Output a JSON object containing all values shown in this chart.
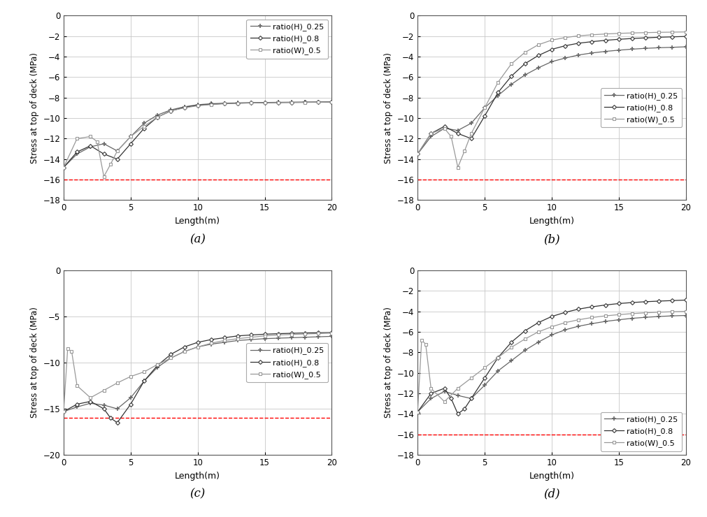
{
  "panels": [
    "(a)",
    "(b)",
    "(c)",
    "(d)"
  ],
  "legend_labels": [
    "ratio(H)_0.25",
    "ratio(H)_0.8",
    "ratio(W)_0.5"
  ],
  "xlabel": "Length(m)",
  "ylabel": "Stress at top of deck (MPa)",
  "x_ticks": [
    0,
    5,
    10,
    15,
    20
  ],
  "subplot_data": {
    "a": {
      "ylim": [
        -18,
        0
      ],
      "yticks": [
        0,
        -2,
        -4,
        -6,
        -8,
        -10,
        -12,
        -14,
        -16,
        -18
      ],
      "red_dashed": -16.0,
      "legend_loc": "upper right",
      "series": {
        "ratio_H_025": {
          "x": [
            0,
            1,
            2,
            3,
            4,
            5,
            6,
            7,
            8,
            9,
            10,
            11,
            12,
            13,
            14,
            15,
            16,
            17,
            18,
            19,
            20
          ],
          "y": [
            -14.8,
            -13.5,
            -12.8,
            -12.5,
            -13.2,
            -11.8,
            -10.5,
            -9.7,
            -9.2,
            -8.9,
            -8.7,
            -8.6,
            -8.55,
            -8.52,
            -8.5,
            -8.48,
            -8.46,
            -8.45,
            -8.44,
            -8.43,
            -8.42
          ],
          "color": "#666666"
        },
        "ratio_H_08": {
          "x": [
            0,
            1,
            2,
            3,
            4,
            5,
            6,
            7,
            8,
            9,
            10,
            11,
            12,
            13,
            14,
            15,
            16,
            17,
            18,
            19,
            20
          ],
          "y": [
            -14.8,
            -13.3,
            -12.7,
            -13.5,
            -14.0,
            -12.5,
            -11.0,
            -9.9,
            -9.3,
            -8.95,
            -8.75,
            -8.65,
            -8.58,
            -8.54,
            -8.52,
            -8.5,
            -8.48,
            -8.47,
            -8.46,
            -8.45,
            -8.44
          ],
          "color": "#333333"
        },
        "ratio_W_05": {
          "x": [
            0,
            1,
            2,
            2.5,
            3,
            3.5,
            4,
            5,
            6,
            7,
            8,
            9,
            10,
            11,
            12,
            13,
            14,
            15,
            16,
            17,
            18,
            19,
            20
          ],
          "y": [
            -14.8,
            -12.0,
            -11.8,
            -12.3,
            -15.7,
            -14.5,
            -13.2,
            -11.8,
            -10.8,
            -9.9,
            -9.3,
            -9.0,
            -8.8,
            -8.68,
            -8.6,
            -8.56,
            -8.53,
            -8.51,
            -8.49,
            -8.48,
            -8.47,
            -8.46,
            -8.45
          ],
          "color": "#999999"
        }
      }
    },
    "b": {
      "ylim": [
        -18,
        0
      ],
      "yticks": [
        0,
        -2,
        -4,
        -6,
        -8,
        -10,
        -12,
        -14,
        -16,
        -18
      ],
      "red_dashed": -16.0,
      "legend_loc": "center right",
      "series": {
        "ratio_H_025": {
          "x": [
            0,
            1,
            2,
            3,
            4,
            5,
            6,
            7,
            8,
            9,
            10,
            11,
            12,
            13,
            14,
            15,
            16,
            17,
            18,
            19,
            20
          ],
          "y": [
            -13.5,
            -11.8,
            -11.0,
            -11.2,
            -10.5,
            -9.0,
            -7.8,
            -6.7,
            -5.8,
            -5.1,
            -4.5,
            -4.15,
            -3.85,
            -3.65,
            -3.5,
            -3.38,
            -3.28,
            -3.2,
            -3.14,
            -3.1,
            -3.05
          ],
          "color": "#666666"
        },
        "ratio_H_08": {
          "x": [
            0,
            1,
            2,
            3,
            4,
            5,
            6,
            7,
            8,
            9,
            10,
            11,
            12,
            13,
            14,
            15,
            16,
            17,
            18,
            19,
            20
          ],
          "y": [
            -13.5,
            -11.5,
            -10.8,
            -11.5,
            -12.0,
            -9.8,
            -7.5,
            -5.9,
            -4.7,
            -3.9,
            -3.3,
            -2.95,
            -2.7,
            -2.55,
            -2.42,
            -2.32,
            -2.24,
            -2.18,
            -2.12,
            -2.08,
            -2.04
          ],
          "color": "#333333"
        },
        "ratio_W_05": {
          "x": [
            0,
            1,
            2,
            2.5,
            3,
            3.5,
            4,
            5,
            6,
            7,
            8,
            9,
            10,
            11,
            12,
            13,
            14,
            15,
            16,
            17,
            18,
            19,
            20
          ],
          "y": [
            -13.5,
            -11.5,
            -11.0,
            -11.8,
            -14.8,
            -13.2,
            -11.5,
            -9.0,
            -6.5,
            -4.7,
            -3.6,
            -2.85,
            -2.4,
            -2.15,
            -1.98,
            -1.88,
            -1.8,
            -1.74,
            -1.7,
            -1.67,
            -1.64,
            -1.62,
            -1.6
          ],
          "color": "#999999"
        }
      }
    },
    "c": {
      "ylim": [
        -20,
        0
      ],
      "yticks": [
        0,
        -5,
        -10,
        -15,
        -20
      ],
      "red_dashed": -16.0,
      "legend_loc": "center right",
      "series": {
        "ratio_H_025": {
          "x": [
            0,
            1,
            2,
            3,
            4,
            5,
            6,
            7,
            8,
            9,
            10,
            11,
            12,
            13,
            14,
            15,
            16,
            17,
            18,
            19,
            20
          ],
          "y": [
            -15.3,
            -14.8,
            -14.4,
            -14.6,
            -15.0,
            -13.8,
            -12.0,
            -10.5,
            -9.5,
            -8.8,
            -8.3,
            -8.0,
            -7.8,
            -7.6,
            -7.5,
            -7.4,
            -7.35,
            -7.3,
            -7.25,
            -7.2,
            -7.15
          ],
          "color": "#666666"
        },
        "ratio_H_08": {
          "x": [
            0,
            1,
            2,
            3,
            3.5,
            4,
            5,
            6,
            7,
            8,
            9,
            10,
            11,
            12,
            13,
            14,
            15,
            16,
            17,
            18,
            19,
            20
          ],
          "y": [
            -15.3,
            -14.5,
            -14.2,
            -15.0,
            -16.0,
            -16.5,
            -14.5,
            -12.0,
            -10.3,
            -9.1,
            -8.3,
            -7.8,
            -7.5,
            -7.3,
            -7.1,
            -7.0,
            -6.92,
            -6.86,
            -6.82,
            -6.78,
            -6.76,
            -6.74
          ],
          "color": "#333333"
        },
        "ratio_W_05": {
          "x": [
            0,
            0.3,
            0.6,
            1,
            2,
            3,
            4,
            5,
            6,
            7,
            8,
            9,
            10,
            11,
            12,
            13,
            14,
            15,
            16,
            17,
            18,
            19,
            20
          ],
          "y": [
            -15.3,
            -8.5,
            -8.8,
            -12.5,
            -13.8,
            -13.0,
            -12.2,
            -11.5,
            -11.0,
            -10.2,
            -9.5,
            -8.8,
            -8.3,
            -7.9,
            -7.6,
            -7.4,
            -7.25,
            -7.1,
            -7.0,
            -6.95,
            -6.9,
            -6.85,
            -6.8
          ],
          "color": "#999999"
        }
      }
    },
    "d": {
      "ylim": [
        -18,
        0
      ],
      "yticks": [
        0,
        -2,
        -4,
        -6,
        -8,
        -10,
        -12,
        -14,
        -16,
        -18
      ],
      "red_dashed": -16.0,
      "legend_loc": "lower right",
      "series": {
        "ratio_H_025": {
          "x": [
            0,
            1,
            2,
            3,
            4,
            5,
            6,
            7,
            8,
            9,
            10,
            11,
            12,
            13,
            14,
            15,
            16,
            17,
            18,
            19,
            20
          ],
          "y": [
            -13.8,
            -12.5,
            -11.8,
            -12.2,
            -12.5,
            -11.2,
            -9.8,
            -8.8,
            -7.8,
            -7.0,
            -6.3,
            -5.8,
            -5.45,
            -5.2,
            -4.98,
            -4.82,
            -4.68,
            -4.58,
            -4.5,
            -4.44,
            -4.4
          ],
          "color": "#666666"
        },
        "ratio_H_08": {
          "x": [
            0,
            1,
            2,
            2.5,
            3,
            3.5,
            4,
            5,
            6,
            7,
            8,
            9,
            10,
            11,
            12,
            13,
            14,
            15,
            16,
            17,
            18,
            19,
            20
          ],
          "y": [
            -13.8,
            -12.0,
            -11.5,
            -12.5,
            -14.0,
            -13.5,
            -12.5,
            -10.5,
            -8.5,
            -7.0,
            -5.9,
            -5.1,
            -4.5,
            -4.1,
            -3.78,
            -3.56,
            -3.38,
            -3.24,
            -3.14,
            -3.06,
            -3.0,
            -2.95,
            -2.9
          ],
          "color": "#333333"
        },
        "ratio_W_05": {
          "x": [
            0,
            0.3,
            0.6,
            1,
            2,
            3,
            4,
            5,
            6,
            7,
            8,
            9,
            10,
            11,
            12,
            13,
            14,
            15,
            16,
            17,
            18,
            19,
            20
          ],
          "y": [
            -13.8,
            -6.8,
            -7.2,
            -11.5,
            -12.8,
            -11.5,
            -10.5,
            -9.5,
            -8.5,
            -7.5,
            -6.7,
            -6.0,
            -5.5,
            -5.1,
            -4.82,
            -4.6,
            -4.44,
            -4.32,
            -4.22,
            -4.14,
            -4.08,
            -4.04,
            -4.0
          ],
          "color": "#999999"
        }
      }
    }
  }
}
